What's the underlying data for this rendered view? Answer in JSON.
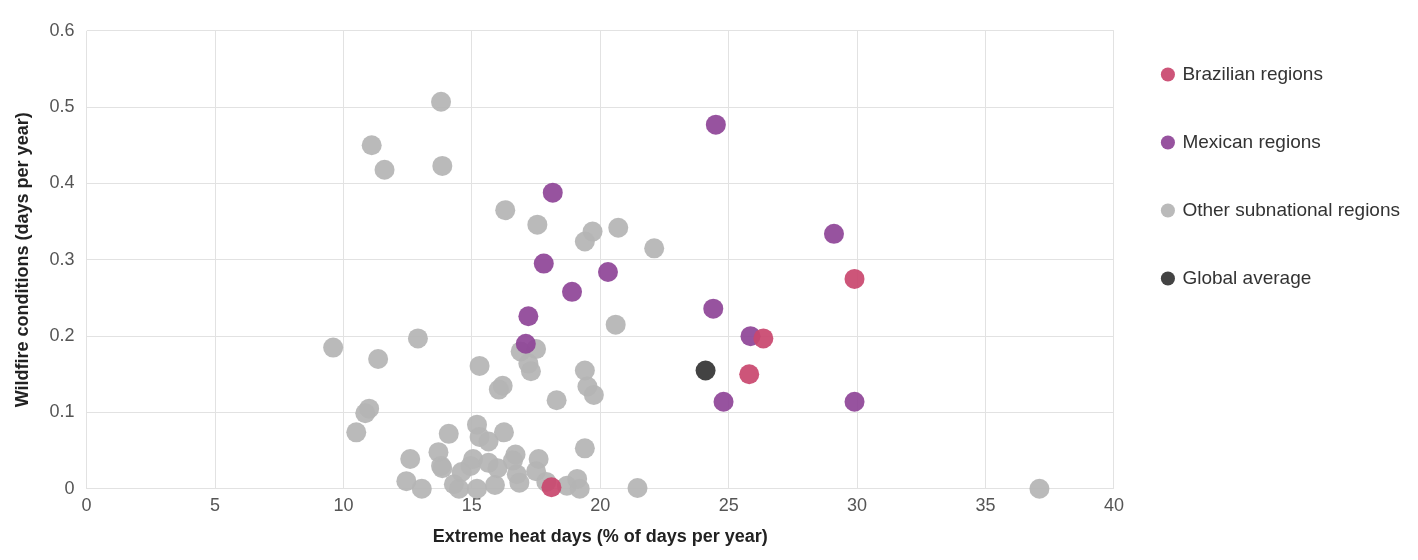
{
  "chart_data": {
    "type": "scatter",
    "xlabel": "Extreme heat days (% of days per year)",
    "ylabel": "Wildfire conditions (days per year)",
    "xlim": [
      0,
      40
    ],
    "xticks": [
      0,
      5,
      10,
      15,
      20,
      25,
      30,
      35,
      40
    ],
    "ylim": [
      0,
      0.6
    ],
    "yticks": [
      0,
      0.1,
      0.2,
      0.3,
      0.4,
      0.5,
      0.6
    ],
    "grid": true,
    "legend": "right",
    "marker": "circle",
    "series": [
      {
        "name": "Brazilian regions",
        "color": "#c9466e",
        "x": [
          29.9,
          26.35,
          25.8,
          18.1
        ],
        "values": [
          0.275,
          0.197,
          0.15,
          0.002
        ]
      },
      {
        "name": "Mexican regions",
        "color": "#8e4497",
        "x": [
          24.5,
          18.15,
          17.8,
          20.3,
          18.9,
          17.2,
          17.1,
          24.4,
          25.85,
          24.8,
          29.9,
          29.1
        ],
        "values": [
          0.477,
          0.388,
          0.295,
          0.284,
          0.258,
          0.226,
          0.19,
          0.236,
          0.2,
          0.114,
          0.114,
          0.334
        ]
      },
      {
        "name": "Other subnational regions",
        "color": "#b4b4b4",
        "x": [
          13.8,
          11.1,
          11.6,
          13.85,
          16.3,
          17.55,
          19.7,
          20.7,
          19.4,
          22.1,
          20.6,
          9.6,
          12.9,
          11.35,
          15.3,
          16.9,
          17.5,
          17.2,
          17.3,
          19.4,
          19.5,
          19.75,
          16.2,
          16.05,
          18.3,
          11.0,
          10.85,
          10.5,
          14.1,
          15.2,
          15.3,
          15.65,
          16.25,
          13.7,
          12.6,
          13.8,
          13.85,
          16.7,
          17.6,
          19.4,
          12.45,
          13.05,
          14.3,
          14.5,
          14.6,
          14.95,
          15.05,
          15.65,
          15.2,
          15.9,
          16.0,
          16.6,
          16.75,
          16.85,
          17.5,
          17.9,
          18.7,
          19.2,
          19.1,
          21.45,
          37.1
        ],
        "values": [
          0.507,
          0.45,
          0.418,
          0.423,
          0.365,
          0.346,
          0.337,
          0.342,
          0.324,
          0.315,
          0.215,
          0.185,
          0.197,
          0.17,
          0.161,
          0.18,
          0.183,
          0.164,
          0.154,
          0.155,
          0.134,
          0.123,
          0.135,
          0.13,
          0.116,
          0.105,
          0.099,
          0.074,
          0.072,
          0.084,
          0.068,
          0.062,
          0.074,
          0.048,
          0.039,
          0.03,
          0.027,
          0.045,
          0.039,
          0.053,
          0.01,
          0.0,
          0.006,
          0.0,
          0.022,
          0.03,
          0.039,
          0.034,
          0.0,
          0.005,
          0.027,
          0.037,
          0.019,
          0.008,
          0.023,
          0.009,
          0.004,
          0.0,
          0.013,
          0.001,
          0.0
        ]
      },
      {
        "name": "Global average",
        "color": "#333333",
        "x": [
          24.1
        ],
        "values": [
          0.155
        ]
      }
    ]
  }
}
